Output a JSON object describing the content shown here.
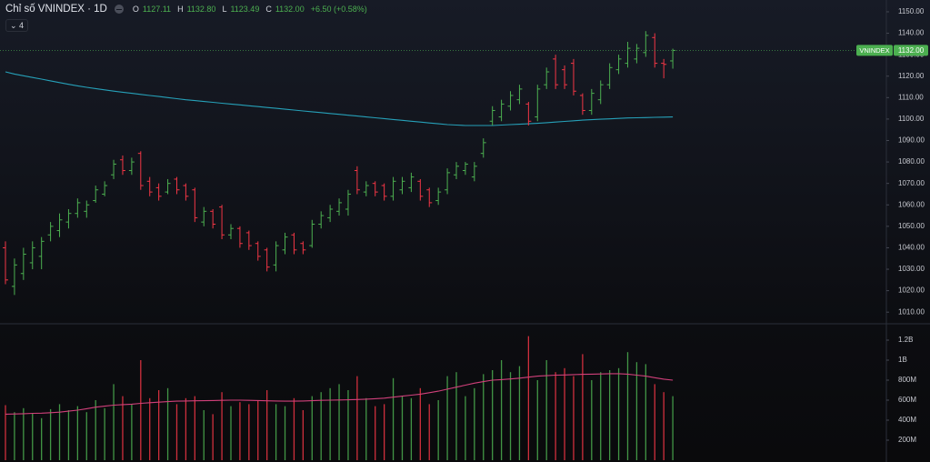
{
  "chart_data": {
    "type": "ohlc",
    "title": "Chỉ số VNINDEX · 1D",
    "legend": {
      "o_label": "O",
      "open": "1127.11",
      "h_label": "H",
      "high": "1132.80",
      "l_label": "L",
      "low": "1123.49",
      "c_label": "C",
      "close": "1132.00",
      "change": "+6.50 (+0.58%)"
    },
    "indicator_count": "4",
    "symbol_label": "VNINDEX",
    "last_label": "1132.00",
    "up_color": "#4caf50",
    "down_color": "#f23645",
    "ma_color": "#26a0b8",
    "ylim": [
      1005,
      1155.5
    ],
    "yticks": [
      {
        "value": 1010,
        "label": "1010.00"
      },
      {
        "value": 1020,
        "label": "1020.00"
      },
      {
        "value": 1030,
        "label": "1030.00"
      },
      {
        "value": 1040,
        "label": "1040.00"
      },
      {
        "value": 1050,
        "label": "1050.00"
      },
      {
        "value": 1060,
        "label": "1060.00"
      },
      {
        "value": 1070,
        "label": "1070.00"
      },
      {
        "value": 1080,
        "label": "1080.00"
      },
      {
        "value": 1090,
        "label": "1090.00"
      },
      {
        "value": 1100,
        "label": "1100.00"
      },
      {
        "value": 1110,
        "label": "1110.00"
      },
      {
        "value": 1120,
        "label": "1120.00"
      },
      {
        "value": 1130,
        "label": "1130.00"
      },
      {
        "value": 1140,
        "label": "1140.00"
      },
      {
        "value": 1150,
        "label": "1150.00"
      }
    ],
    "ohlc": [
      [
        1040,
        1043,
        1023,
        1025
      ],
      [
        1022,
        1035,
        1018,
        1032
      ],
      [
        1028,
        1040,
        1025,
        1037
      ],
      [
        1033,
        1043,
        1030,
        1040
      ],
      [
        1036,
        1045,
        1030,
        1043
      ],
      [
        1046,
        1052,
        1043,
        1050
      ],
      [
        1048,
        1056,
        1045,
        1053
      ],
      [
        1052,
        1058,
        1049,
        1056
      ],
      [
        1056,
        1063,
        1054,
        1061
      ],
      [
        1057,
        1062,
        1054,
        1060
      ],
      [
        1062,
        1069,
        1061,
        1067
      ],
      [
        1065,
        1071,
        1064,
        1069
      ],
      [
        1074,
        1081,
        1072,
        1079
      ],
      [
        1081,
        1083,
        1074,
        1076
      ],
      [
        1076,
        1082,
        1074,
        1080
      ],
      [
        1084,
        1085,
        1067,
        1069
      ],
      [
        1071,
        1073,
        1064,
        1066
      ],
      [
        1068,
        1070,
        1062,
        1064
      ],
      [
        1066,
        1072,
        1065,
        1070
      ],
      [
        1072,
        1073,
        1065,
        1067
      ],
      [
        1069,
        1070,
        1062,
        1064
      ],
      [
        1067,
        1068,
        1052,
        1054
      ],
      [
        1052,
        1059,
        1050,
        1057
      ],
      [
        1057,
        1058,
        1049,
        1051
      ],
      [
        1059,
        1060,
        1044,
        1046
      ],
      [
        1046,
        1051,
        1044,
        1049
      ],
      [
        1049,
        1050,
        1040,
        1042
      ],
      [
        1047,
        1048,
        1039,
        1041
      ],
      [
        1042,
        1043,
        1034,
        1036
      ],
      [
        1039,
        1040,
        1029,
        1031
      ],
      [
        1032,
        1043,
        1029,
        1041
      ],
      [
        1039,
        1047,
        1037,
        1045
      ],
      [
        1046,
        1047,
        1037,
        1039
      ],
      [
        1042,
        1043,
        1037,
        1039
      ],
      [
        1041,
        1053,
        1040,
        1051
      ],
      [
        1051,
        1057,
        1049,
        1055
      ],
      [
        1054,
        1060,
        1052,
        1058
      ],
      [
        1057,
        1063,
        1055,
        1061
      ],
      [
        1058,
        1067,
        1055,
        1065
      ],
      [
        1076,
        1078,
        1065,
        1067
      ],
      [
        1066,
        1071,
        1064,
        1069
      ],
      [
        1070,
        1071,
        1064,
        1066
      ],
      [
        1069,
        1070,
        1062,
        1064
      ],
      [
        1064,
        1073,
        1062,
        1071
      ],
      [
        1067,
        1073,
        1065,
        1071
      ],
      [
        1068,
        1075,
        1066,
        1073
      ],
      [
        1071,
        1072,
        1062,
        1064
      ],
      [
        1067,
        1068,
        1059,
        1061
      ],
      [
        1062,
        1068,
        1060,
        1066
      ],
      [
        1067,
        1077,
        1065,
        1075
      ],
      [
        1074,
        1080,
        1072,
        1078
      ],
      [
        1076,
        1080,
        1074,
        1079
      ],
      [
        1073,
        1080,
        1071,
        1078
      ],
      [
        1084,
        1091,
        1082,
        1089
      ],
      [
        1099,
        1106,
        1097,
        1104
      ],
      [
        1101,
        1109,
        1099,
        1107
      ],
      [
        1106,
        1113,
        1104,
        1111
      ],
      [
        1109,
        1116,
        1107,
        1114
      ],
      [
        1107,
        1108,
        1097,
        1099
      ],
      [
        1101,
        1116,
        1099,
        1114
      ],
      [
        1116,
        1124,
        1114,
        1122
      ],
      [
        1128,
        1130,
        1114,
        1116
      ],
      [
        1123,
        1125,
        1114,
        1116
      ],
      [
        1126,
        1128,
        1111,
        1113
      ],
      [
        1111,
        1112,
        1102,
        1104
      ],
      [
        1104,
        1114,
        1102,
        1112
      ],
      [
        1109,
        1118,
        1107,
        1116
      ],
      [
        1116,
        1126,
        1114,
        1124
      ],
      [
        1123,
        1130,
        1121,
        1128
      ],
      [
        1126,
        1136,
        1124,
        1133
      ],
      [
        1128,
        1135,
        1126,
        1133
      ],
      [
        1131,
        1141,
        1129,
        1139
      ],
      [
        1138,
        1140,
        1124,
        1126
      ],
      [
        1126,
        1128,
        1119,
        1125.5
      ],
      [
        1127.11,
        1132.8,
        1123.49,
        1132
      ]
    ],
    "ma": [
      1122,
      1121,
      1120.2,
      1119.4,
      1118.6,
      1117.8,
      1117,
      1116.2,
      1115.5,
      1114.8,
      1114.2,
      1113.6,
      1113,
      1112.5,
      1112,
      1111.5,
      1111,
      1110.5,
      1110,
      1109.5,
      1109,
      1108.6,
      1108.2,
      1107.8,
      1107.4,
      1107,
      1106.6,
      1106.2,
      1105.8,
      1105.4,
      1105,
      1104.6,
      1104.2,
      1103.8,
      1103.4,
      1103,
      1102.6,
      1102.2,
      1101.8,
      1101.4,
      1101,
      1100.6,
      1100.2,
      1099.8,
      1099.4,
      1099,
      1098.6,
      1098.2,
      1097.8,
      1097.4,
      1097.2,
      1097,
      1097,
      1097,
      1097,
      1097.2,
      1097.4,
      1097.6,
      1097.8,
      1098,
      1098.3,
      1098.6,
      1098.9,
      1099.2,
      1099.5,
      1099.7,
      1099.9,
      1100.1,
      1100.3,
      1100.5,
      1100.6,
      1100.7,
      1100.8,
      1100.9,
      1101
    ],
    "volume": {
      "ylim": [
        0,
        1350000000
      ],
      "yticks": [
        {
          "value": 200000000,
          "label": "200M"
        },
        {
          "value": 400000000,
          "label": "400M"
        },
        {
          "value": 600000000,
          "label": "600M"
        },
        {
          "value": 800000000,
          "label": "800M"
        },
        {
          "value": 1000000000,
          "label": "1B"
        },
        {
          "value": 1200000000,
          "label": "1.2B"
        }
      ],
      "ma_color": "#d0407a",
      "values": [
        550000000,
        480000000,
        520000000,
        470000000,
        420000000,
        510000000,
        560000000,
        500000000,
        540000000,
        480000000,
        600000000,
        520000000,
        760000000,
        640000000,
        560000000,
        1000000000,
        620000000,
        700000000,
        720000000,
        560000000,
        620000000,
        640000000,
        500000000,
        460000000,
        680000000,
        540000000,
        580000000,
        560000000,
        600000000,
        700000000,
        560000000,
        540000000,
        620000000,
        500000000,
        640000000,
        680000000,
        720000000,
        760000000,
        700000000,
        840000000,
        620000000,
        540000000,
        560000000,
        820000000,
        640000000,
        620000000,
        720000000,
        560000000,
        600000000,
        840000000,
        880000000,
        640000000,
        720000000,
        860000000,
        900000000,
        1000000000,
        880000000,
        940000000,
        1240000000,
        800000000,
        1000000000,
        880000000,
        920000000,
        840000000,
        1060000000,
        800000000,
        880000000,
        900000000,
        920000000,
        1080000000,
        980000000,
        960000000,
        760000000,
        680000000,
        640000000
      ],
      "ma": [
        460000000,
        462000000,
        465000000,
        468000000,
        470000000,
        475000000,
        480000000,
        490000000,
        500000000,
        515000000,
        530000000,
        540000000,
        550000000,
        555000000,
        560000000,
        568000000,
        575000000,
        580000000,
        585000000,
        590000000,
        592000000,
        594000000,
        595000000,
        596000000,
        598000000,
        600000000,
        600000000,
        598000000,
        596000000,
        594000000,
        592000000,
        590000000,
        590000000,
        592000000,
        595000000,
        598000000,
        600000000,
        602000000,
        604000000,
        606000000,
        610000000,
        615000000,
        620000000,
        630000000,
        640000000,
        650000000,
        660000000,
        675000000,
        690000000,
        710000000,
        730000000,
        750000000,
        770000000,
        785000000,
        800000000,
        805000000,
        812000000,
        820000000,
        830000000,
        840000000,
        845000000,
        850000000,
        852000000,
        855000000,
        858000000,
        860000000,
        862000000,
        865000000,
        865000000,
        860000000,
        850000000,
        840000000,
        825000000,
        810000000,
        800000000
      ]
    }
  }
}
